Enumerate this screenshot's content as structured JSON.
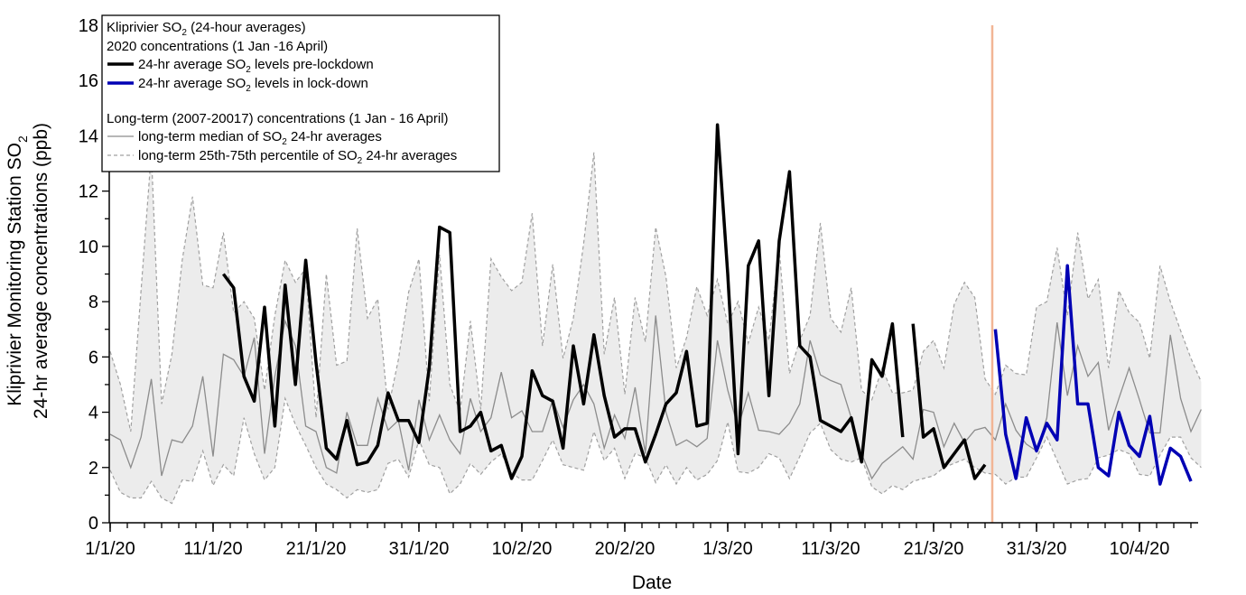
{
  "chart_data": {
    "type": "line",
    "title": "Kliprivier SO2 (24-hour averages)",
    "xlabel": "Date",
    "ylabel_line1": "Kliprivier Monitoring Station SO",
    "ylabel_line1_sub": "2",
    "ylabel_line2": "24-hr average concentrations (ppb)",
    "ylim": [
      0,
      18
    ],
    "yticks": [
      "0",
      "2",
      "4",
      "6",
      "8",
      "10",
      "12",
      "14",
      "16",
      "18"
    ],
    "x_unit": "days since 1 Jan 2020",
    "xlim": [
      0,
      106
    ],
    "xticks": [
      {
        "day": 0,
        "label": "1/1/20"
      },
      {
        "day": 10,
        "label": "11/1/20"
      },
      {
        "day": 20,
        "label": "21/1/20"
      },
      {
        "day": 30,
        "label": "31/1/20"
      },
      {
        "day": 40,
        "label": "10/2/20"
      },
      {
        "day": 50,
        "label": "20/2/20"
      },
      {
        "day": 60,
        "label": "1/3/20"
      },
      {
        "day": 70,
        "label": "11/3/20"
      },
      {
        "day": 80,
        "label": "21/3/20"
      },
      {
        "day": 90,
        "label": "31/3/20"
      },
      {
        "day": 100,
        "label": "10/4/20"
      }
    ],
    "lockdown_day": 85.7,
    "legend": {
      "placement": "top-left",
      "title_pre": "Kliprivier SO",
      "title_sub": "2",
      "title_post": " (24-hour averages)",
      "group1": "2020 concentrations (1 Jan -16 April)",
      "pre_pre": "24-hr average SO",
      "pre_sub": "2",
      "pre_post": " levels pre-lockdown",
      "lock_pre": "24-hr average SO",
      "lock_sub": "2",
      "lock_post": " levels in lock-down",
      "group2": "Long-term (2007-20017) concentrations (1 Jan - 16 April)",
      "median_pre": "long-term median of SO",
      "median_sub": "2",
      "median_post": " 24-hr averages",
      "pct_pre": "long-term 25th-75th percentile of SO",
      "pct_sub": "2",
      "pct_post": " 24-hr averages"
    },
    "colors": {
      "pre": "#000000",
      "lockdown": "#0000b4",
      "median": "#8c8c8c",
      "band": "#ececec",
      "percentile": "#a0a0a0",
      "lockdown_line": "#f2b595"
    },
    "series": [
      {
        "name": "24-hr average SO2 levels pre-lockdown",
        "segments": [
          {
            "start_day": 11,
            "values": [
              9.0,
              8.5,
              5.3,
              4.4,
              7.8,
              3.5,
              8.6,
              5.0,
              9.5,
              5.8,
              2.7,
              2.3,
              3.7,
              2.1,
              2.2,
              2.8,
              4.7,
              3.7,
              3.7,
              2.9,
              5.6,
              10.7,
              10.5,
              3.3,
              3.5,
              4.0,
              2.6,
              2.8,
              1.6,
              2.4,
              5.5,
              4.6,
              4.4,
              2.7,
              6.4,
              4.3,
              6.8,
              4.6,
              3.1,
              3.4,
              3.4,
              2.2,
              3.2,
              4.3,
              4.7,
              6.2,
              3.5,
              3.6,
              14.4,
              9.0,
              2.5,
              9.3,
              10.2,
              4.6,
              10.2,
              12.7,
              6.4,
              6.0,
              3.7,
              3.5,
              3.3,
              3.8,
              2.2,
              5.9,
              5.3,
              7.2,
              3.1
            ]
          },
          {
            "start_day": 78,
            "values": [
              7.2,
              3.1,
              3.4,
              2.0,
              2.5,
              3.0,
              1.6,
              2.1
            ]
          }
        ]
      },
      {
        "name": "24-hr average SO2 levels in lock-down",
        "segments": [
          {
            "start_day": 86,
            "values": [
              7.0,
              3.2,
              1.6,
              3.8,
              2.6,
              3.6,
              3.0,
              9.3,
              4.3,
              4.3,
              2.0,
              1.7,
              4.0,
              2.8,
              2.4,
              3.85,
              1.4,
              2.7,
              2.4,
              1.5
            ]
          }
        ]
      },
      {
        "name": "long-term median of SO2 24-hr averages",
        "start_day": 0,
        "values": [
          3.2,
          3.0,
          2.0,
          3.1,
          5.2,
          1.7,
          3.0,
          2.9,
          3.5,
          5.3,
          2.4,
          6.1,
          5.9,
          5.3,
          6.7,
          2.5,
          5.3,
          7.3,
          6.4,
          3.5,
          3.3,
          2.0,
          1.8,
          4.0,
          2.8,
          2.8,
          4.5,
          3.35,
          3.7,
          1.9,
          4.45,
          3.0,
          3.9,
          3.0,
          2.5,
          4.5,
          3.3,
          3.8,
          5.45,
          3.8,
          4.05,
          3.3,
          3.3,
          4.45,
          3.45,
          4.45,
          5.0,
          4.3,
          2.7,
          3.9,
          3.05,
          4.9,
          2.5,
          7.5,
          4.0,
          2.8,
          3.0,
          2.75,
          3.05,
          6.6,
          4.8,
          3.45,
          4.7,
          3.35,
          3.3,
          3.2,
          3.6,
          4.3,
          6.6,
          5.35,
          5.15,
          5.0,
          3.8,
          2.5,
          1.6,
          2.15,
          2.45,
          2.75,
          2.3,
          4.1,
          4.0,
          2.75,
          3.6,
          2.9,
          3.35,
          3.45,
          3.0,
          4.3,
          3.35,
          2.85,
          2.6,
          3.8,
          7.25,
          4.6,
          6.4,
          5.3,
          5.8,
          3.35,
          4.5,
          5.6,
          4.45,
          3.25,
          3.25,
          6.8,
          4.5,
          3.3,
          4.1
        ]
      },
      {
        "name": "long-term 75th percentile",
        "start_day": 0,
        "values": [
          6.2,
          5.0,
          3.3,
          8.4,
          13.4,
          4.3,
          6.1,
          9.5,
          11.8,
          8.6,
          8.5,
          10.5,
          7.6,
          8.0,
          7.4,
          4.8,
          7.5,
          9.5,
          8.7,
          9.2,
          3.8,
          9.0,
          5.7,
          5.85,
          10.65,
          7.4,
          8.1,
          4.1,
          5.9,
          8.35,
          9.55,
          4.4,
          9.7,
          5.0,
          4.0,
          7.3,
          4.1,
          9.55,
          8.9,
          8.4,
          8.7,
          11.2,
          6.4,
          9.35,
          5.95,
          7.4,
          10.1,
          13.4,
          6.1,
          8.15,
          4.65,
          8.15,
          6.55,
          10.7,
          8.9,
          5.6,
          6.7,
          8.55,
          7.5,
          8.8,
          7.2,
          8.0,
          6.5,
          7.8,
          6.6,
          9.9,
          5.4,
          6.6,
          7.5,
          10.85,
          7.4,
          6.9,
          8.5,
          4.8,
          4.45,
          5.6,
          4.7,
          4.7,
          4.8,
          6.2,
          6.6,
          5.6,
          7.9,
          8.7,
          8.15,
          5.2,
          4.65,
          5.7,
          5.4,
          5.35,
          7.8,
          8.0,
          9.95,
          7.5,
          10.5,
          8.1,
          8.8,
          5.6,
          8.4,
          7.6,
          7.25,
          5.95,
          9.3,
          8.0,
          6.95,
          5.95,
          5.1
        ]
      },
      {
        "name": "long-term 25th percentile",
        "start_day": 0,
        "values": [
          1.9,
          1.1,
          0.9,
          0.9,
          1.5,
          0.9,
          0.7,
          1.55,
          1.5,
          2.6,
          1.35,
          2.1,
          1.7,
          3.8,
          2.5,
          1.55,
          2.0,
          4.5,
          3.55,
          2.8,
          2.0,
          1.4,
          1.2,
          0.9,
          1.2,
          1.1,
          1.2,
          2.15,
          2.3,
          1.65,
          3.0,
          2.1,
          2.0,
          1.05,
          1.4,
          2.15,
          1.75,
          2.2,
          2.5,
          1.8,
          1.55,
          1.55,
          2.25,
          3.0,
          2.1,
          2.0,
          1.9,
          3.3,
          2.25,
          2.7,
          1.6,
          2.5,
          2.35,
          1.45,
          2.1,
          1.4,
          2.0,
          1.55,
          1.75,
          2.25,
          3.65,
          1.85,
          1.8,
          2.0,
          2.5,
          2.35,
          1.6,
          2.4,
          3.25,
          3.6,
          2.65,
          2.3,
          2.2,
          2.35,
          1.3,
          1.05,
          1.35,
          1.2,
          1.5,
          1.6,
          1.7,
          2.0,
          2.15,
          2.3,
          2.0,
          1.8,
          1.75,
          1.4,
          1.65,
          1.65,
          2.35,
          3.1,
          2.25,
          1.4,
          1.55,
          1.6,
          2.35,
          2.45,
          2.65,
          2.5,
          1.75,
          1.7,
          2.45,
          3.1,
          3.1,
          2.35,
          2.0
        ]
      }
    ]
  }
}
